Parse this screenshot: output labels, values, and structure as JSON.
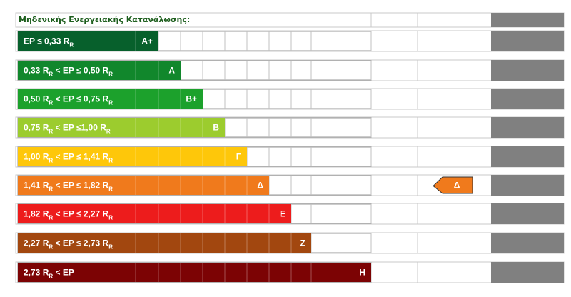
{
  "header": {
    "title": "Μηδενικής Ενεργειακής Κατανάλωσης:"
  },
  "rows": [
    {
      "label": [
        {
          "text": "EP ≤ 0,33 R"
        },
        {
          "text": "R",
          "sub": true
        }
      ],
      "class": "A+",
      "color": "#07602c"
    },
    {
      "label": [
        {
          "text": "0,33 R"
        },
        {
          "text": "R",
          "sub": true
        },
        {
          "text": " < EP ≤ 0,50 R"
        },
        {
          "text": "R",
          "sub": true
        }
      ],
      "class": "A",
      "color": "#11872c"
    },
    {
      "label": [
        {
          "text": "0,50 R"
        },
        {
          "text": "R",
          "sub": true
        },
        {
          "text": " < EP ≤ 0,75 R"
        },
        {
          "text": "R",
          "sub": true
        }
      ],
      "class": "B+",
      "color": "#1ca12c"
    },
    {
      "label": [
        {
          "text": "0,75 R"
        },
        {
          "text": "R",
          "sub": true
        },
        {
          "text": " < EP ≤1,00 R"
        },
        {
          "text": "R",
          "sub": true
        }
      ],
      "class": "B",
      "color": "#9ccc2e"
    },
    {
      "label": [
        {
          "text": "1,00 R"
        },
        {
          "text": "R",
          "sub": true
        },
        {
          "text": " < EP ≤ 1,41 R"
        },
        {
          "text": "R",
          "sub": true
        }
      ],
      "class": "Γ",
      "color": "#fec70a"
    },
    {
      "label": [
        {
          "text": "1,41 R"
        },
        {
          "text": "R",
          "sub": true
        },
        {
          "text": " < EP ≤ 1,82 R"
        },
        {
          "text": "R",
          "sub": true
        }
      ],
      "class": "Δ",
      "color": "#f07a1c"
    },
    {
      "label": [
        {
          "text": "1,82 R"
        },
        {
          "text": "R",
          "sub": true
        },
        {
          "text": " < EP ≤ 2,27 R"
        },
        {
          "text": "R",
          "sub": true
        }
      ],
      "class": "E",
      "color": "#ed1c1c"
    },
    {
      "label": [
        {
          "text": "2,27 R"
        },
        {
          "text": "R",
          "sub": true
        },
        {
          "text": " <  EP ≤  2,73 R"
        },
        {
          "text": "R",
          "sub": true
        }
      ],
      "class": "Z",
      "color": "#a2470f"
    },
    {
      "label": [
        {
          "text": "2,73 R"
        },
        {
          "text": "R",
          "sub": true
        },
        {
          "text": " < EP"
        }
      ],
      "class": "H",
      "color": "#7c0304"
    }
  ],
  "current_rating": "Δ"
}
